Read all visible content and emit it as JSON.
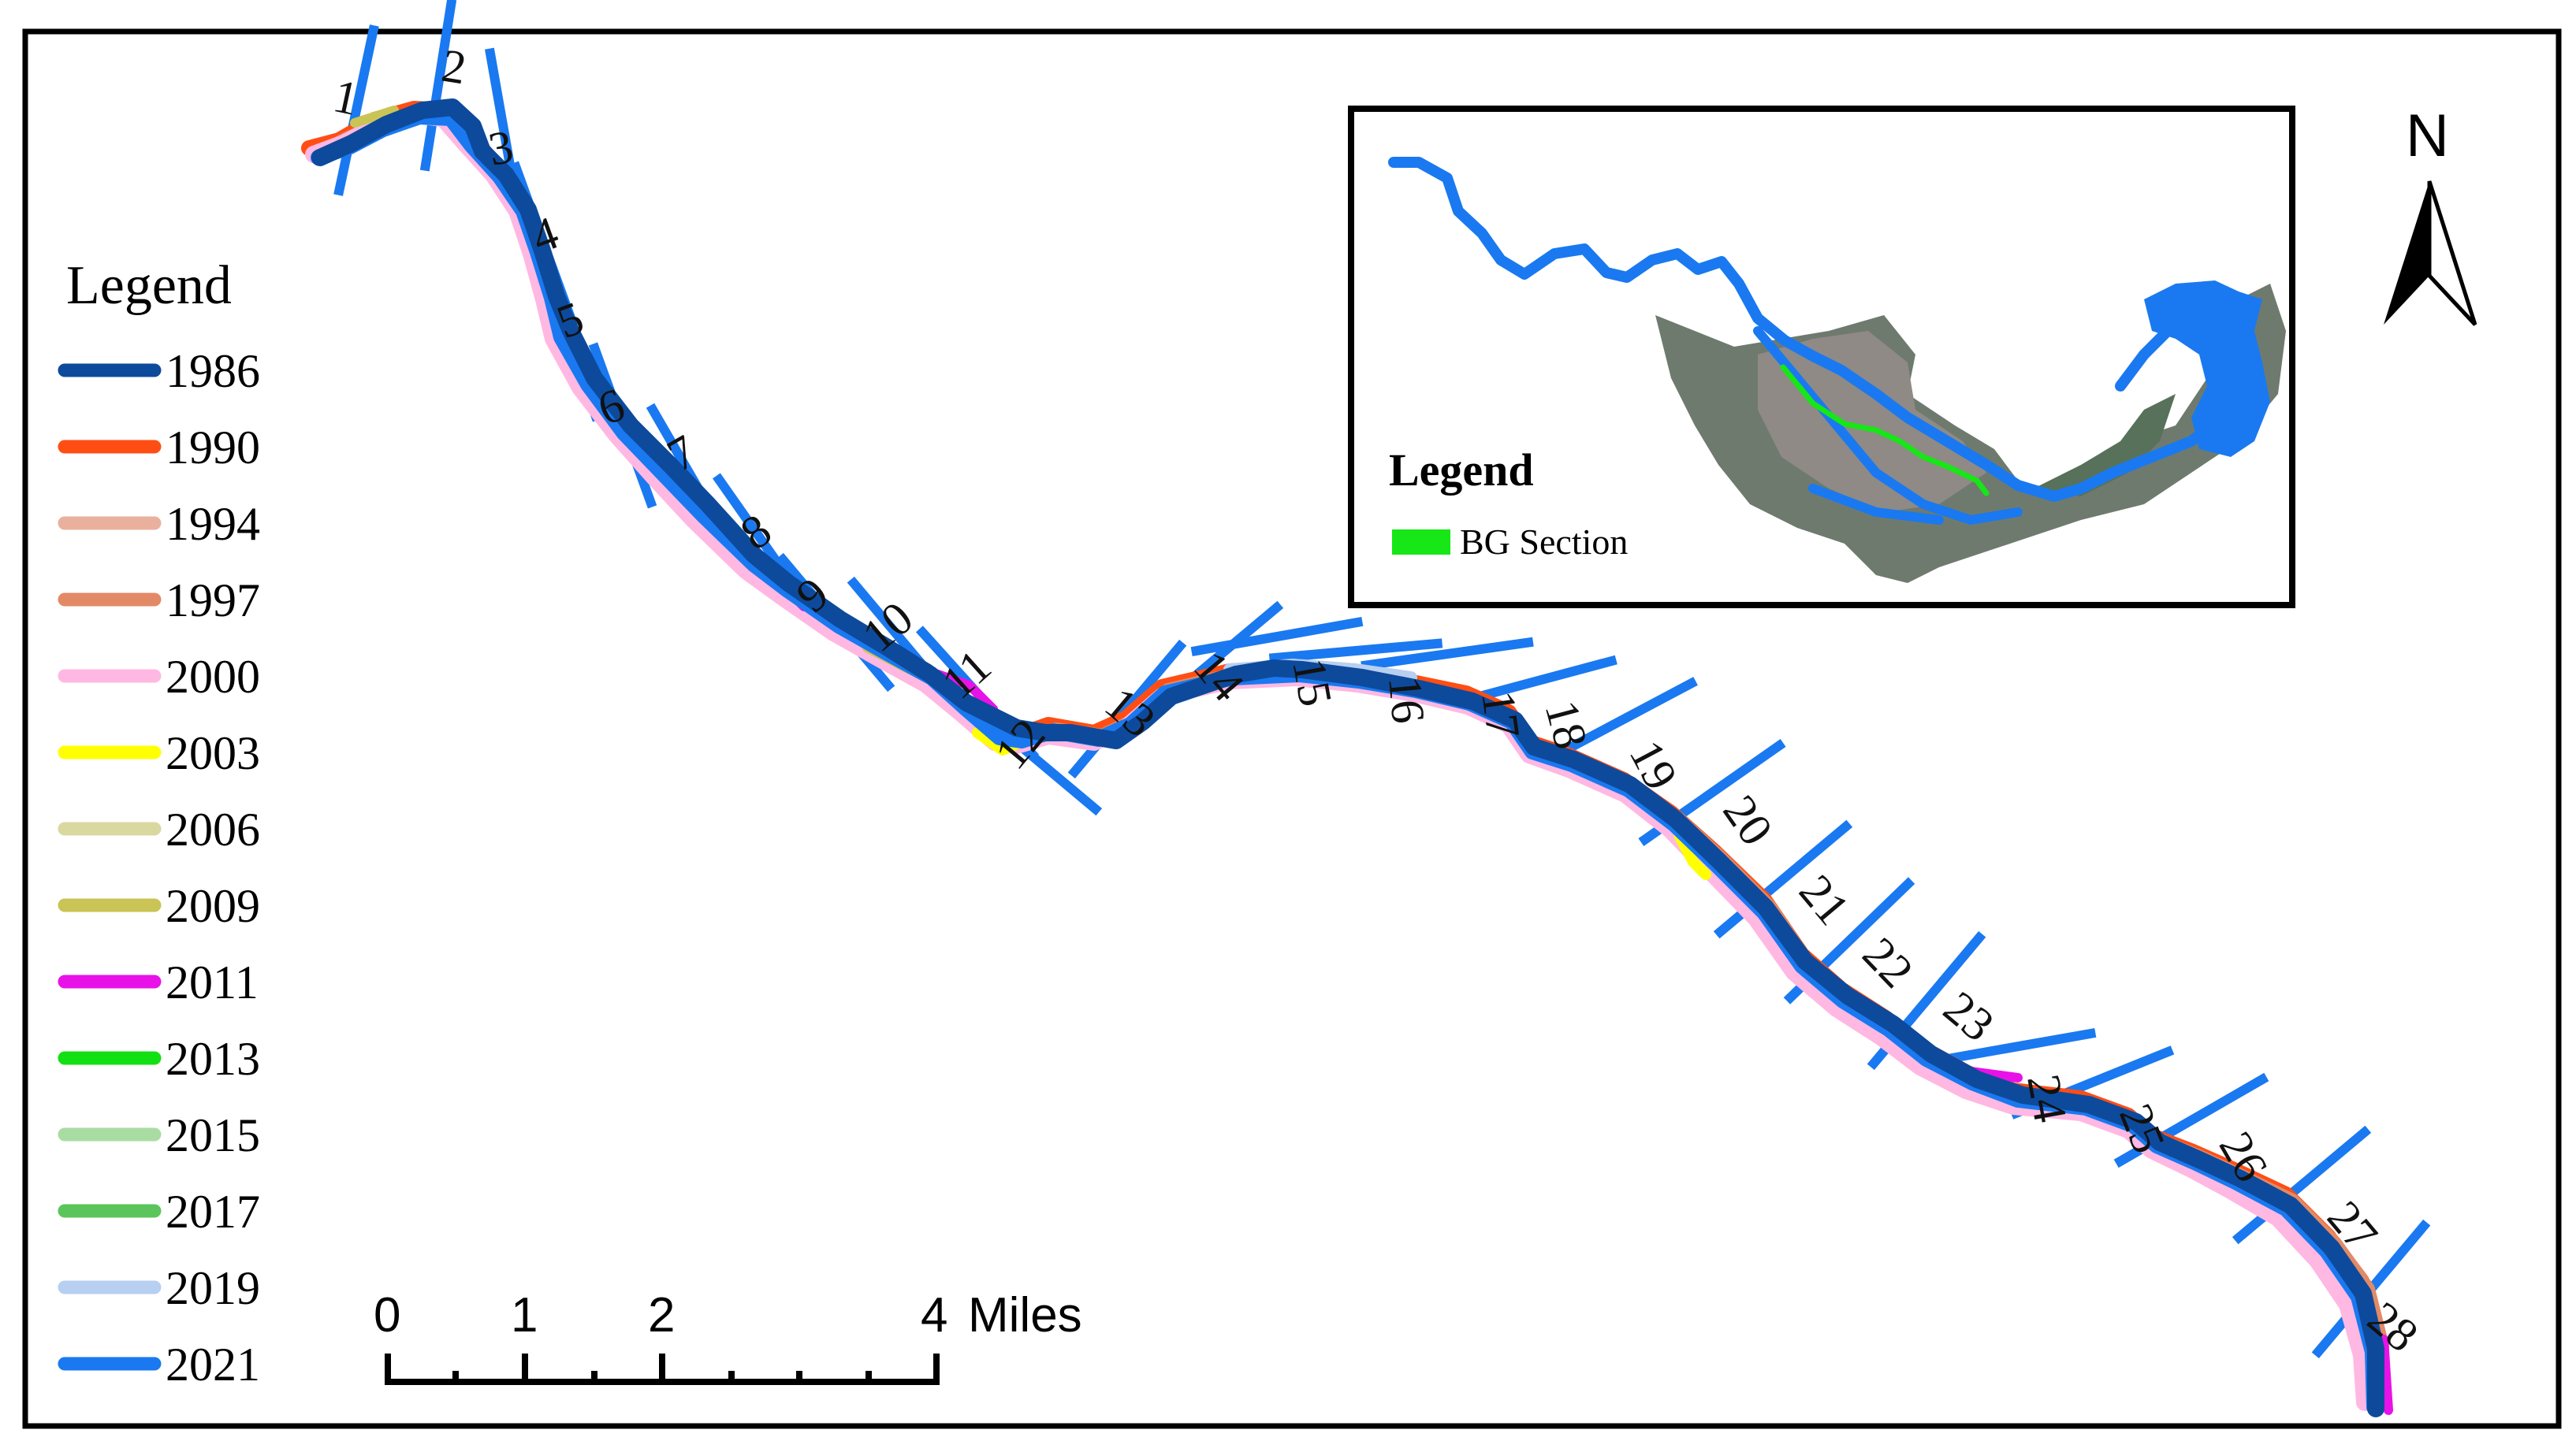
{
  "legend": {
    "title": "Legend",
    "items": [
      {
        "year": "1986",
        "color": "#0d4a9c"
      },
      {
        "year": "1990",
        "color": "#ff4e14"
      },
      {
        "year": "1994",
        "color": "#e9b19d"
      },
      {
        "year": "1997",
        "color": "#e28a66"
      },
      {
        "year": "2000",
        "color": "#ffb8e2"
      },
      {
        "year": "2003",
        "color": "#ffff00"
      },
      {
        "year": "2006",
        "color": "#d9d8a0"
      },
      {
        "year": "2009",
        "color": "#c9c455"
      },
      {
        "year": "2011",
        "color": "#e812e8"
      },
      {
        "year": "2013",
        "color": "#13e013"
      },
      {
        "year": "2015",
        "color": "#a9dca3"
      },
      {
        "year": "2017",
        "color": "#5bc55b"
      },
      {
        "year": "2019",
        "color": "#b7cff0"
      },
      {
        "year": "2021",
        "color": "#1a79f0"
      }
    ]
  },
  "cross_sections": [
    "1",
    "2",
    "3",
    "4",
    "5",
    "6",
    "7",
    "8",
    "9",
    "10",
    "11",
    "12",
    "13",
    "14",
    "15",
    "16",
    "17",
    "18",
    "19",
    "20",
    "21",
    "22",
    "23",
    "24",
    "25",
    "26",
    "27",
    "28"
  ],
  "scale_bar": {
    "ticks": [
      "0",
      "1",
      "2",
      "4"
    ],
    "unit": "Miles"
  },
  "north_arrow": {
    "label": "N"
  },
  "inset": {
    "legend_title": "Legend",
    "item_label": "BG Section",
    "item_color": "#17e617"
  },
  "colors": {
    "river_main": "#0d4a9c",
    "cross_section": "#1a79f0",
    "inset_water": "#1a79f0"
  }
}
